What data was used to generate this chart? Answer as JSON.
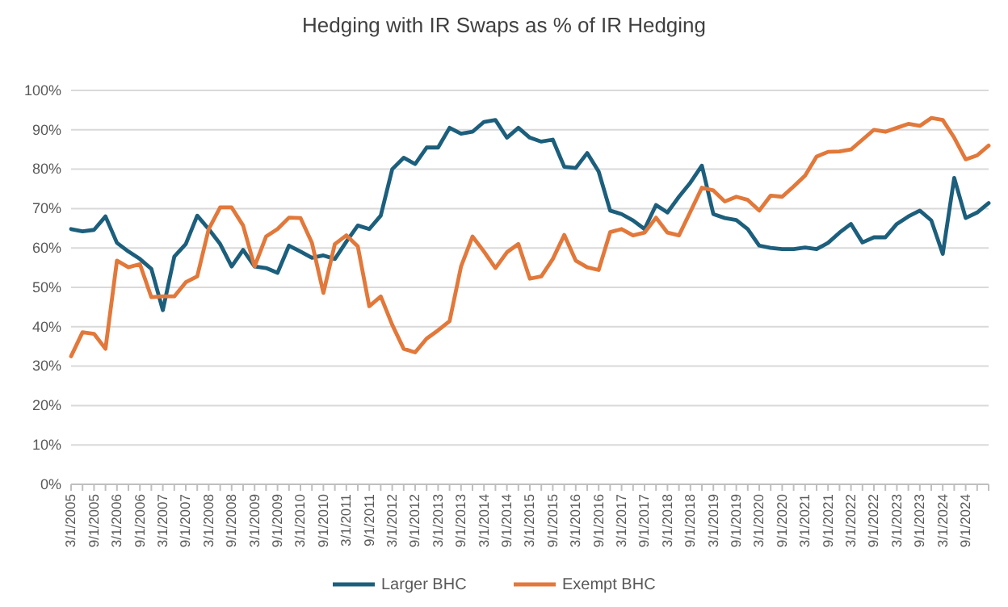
{
  "chart_data": {
    "type": "line",
    "title": "Hedging with IR Swaps as % of IR Hedging",
    "categories": [
      "3/1/2005",
      null,
      "9/1/2005",
      null,
      "3/1/2006",
      null,
      "9/1/2006",
      null,
      "3/1/2007",
      null,
      "9/1/2007",
      null,
      "3/1/2008",
      null,
      "9/1/2008",
      null,
      "3/1/2009",
      null,
      "9/1/2009",
      null,
      "3/1/2010",
      null,
      "9/1/2010",
      null,
      "3/1/2011",
      null,
      "9/1/2011",
      null,
      "3/1/2012",
      null,
      "9/1/2012",
      null,
      "3/1/2013",
      null,
      "9/1/2013",
      null,
      "3/1/2014",
      null,
      "9/1/2014",
      null,
      "3/1/2015",
      null,
      "9/1/2015",
      null,
      "3/1/2016",
      null,
      "9/1/2016",
      null,
      "3/1/2017",
      null,
      "9/1/2017",
      null,
      "3/1/2018",
      null,
      "9/1/2018",
      null,
      "3/1/2019",
      null,
      "9/1/2019",
      null,
      "3/1/2020",
      null,
      "9/1/2020",
      null,
      "3/1/2021",
      null,
      "9/1/2021",
      null,
      "3/1/2022",
      null,
      "9/1/2022",
      null,
      "3/1/2023",
      null,
      "9/1/2023",
      null,
      "3/1/2024",
      null,
      "9/1/2024",
      null,
      null
    ],
    "series": [
      {
        "name": "Larger BHC",
        "color": "#1c5f7c",
        "values": [
          64.8,
          64.2,
          64.6,
          68,
          61.3,
          59.1,
          57.2,
          54.7,
          44.2,
          57.8,
          61,
          68.2,
          64.8,
          61,
          55.3,
          59.5,
          55.3,
          54.9,
          53.7,
          60.6,
          59.1,
          57.5,
          58.1,
          57.2,
          61.6,
          65.7,
          64.8,
          68.2,
          80,
          82.9,
          81.3,
          85.5,
          85.5,
          90.5,
          89,
          89.5,
          92,
          92.5,
          88,
          90.5,
          88,
          87,
          87.5,
          80.6,
          80.3,
          84.1,
          79.4,
          69.5,
          68.6,
          67,
          64.8,
          70.9,
          69,
          73,
          76.6,
          80.9,
          68.6,
          67.6,
          67.1,
          64.8,
          60.6,
          60,
          59.7,
          59.7,
          60.1,
          59.7,
          61.3,
          63.9,
          66.1,
          61.4,
          62.7,
          62.7,
          66.1,
          68,
          69.5,
          67,
          58.5,
          77.8,
          67.6,
          69,
          71.4
        ]
      },
      {
        "name": "Exempt BHC",
        "color": "#e2783a",
        "values": [
          32.5,
          38.6,
          38.2,
          34.4,
          56.8,
          55.1,
          55.9,
          47.5,
          47.7,
          47.7,
          51.3,
          52.8,
          64.8,
          70.3,
          70.3,
          65.7,
          55.3,
          62.9,
          64.8,
          67.7,
          67.6,
          61.3,
          48.6,
          61,
          63.2,
          60.4,
          45.2,
          47.7,
          40.5,
          34.4,
          33.5,
          37,
          39.1,
          41.4,
          55.3,
          62.9,
          59.1,
          54.9,
          58.9,
          61,
          52.2,
          52.8,
          57.2,
          63.3,
          56.8,
          55.1,
          54.4,
          64,
          64.8,
          63.2,
          63.9,
          67.7,
          63.9,
          63.2,
          69.2,
          75.3,
          74.6,
          71.8,
          73,
          72.2,
          69.5,
          73.3,
          73,
          75.6,
          78.4,
          83.2,
          84.4,
          84.5,
          85,
          87.5,
          90,
          89.5,
          90.5,
          91.5,
          91,
          93,
          92.5,
          88,
          82.5,
          83.5,
          86
        ]
      }
    ],
    "ylim": [
      0,
      100
    ],
    "yticks": [
      {
        "value": 0,
        "label": "0%"
      },
      {
        "value": 10,
        "label": "10%"
      },
      {
        "value": 20,
        "label": "20%"
      },
      {
        "value": 30,
        "label": "30%"
      },
      {
        "value": 40,
        "label": "40%"
      },
      {
        "value": 50,
        "label": "50%"
      },
      {
        "value": 60,
        "label": "60%"
      },
      {
        "value": 70,
        "label": "70%"
      },
      {
        "value": 80,
        "label": "80%"
      },
      {
        "value": 90,
        "label": "90%"
      },
      {
        "value": 100,
        "label": "100%"
      }
    ],
    "grid": "y",
    "legend": "bottom",
    "marker": "none",
    "line_style": "solid"
  }
}
